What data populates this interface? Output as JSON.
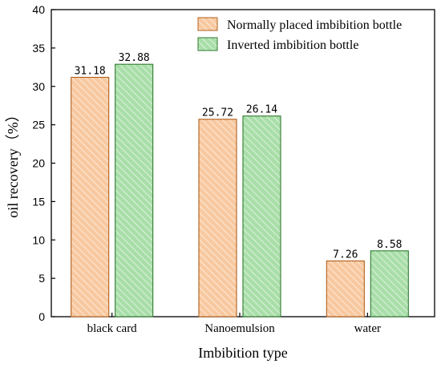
{
  "chart_data": {
    "type": "bar",
    "categories": [
      "black card",
      "Nanoemulsion",
      "water"
    ],
    "series": [
      {
        "name": "Normally placed imbibition bottle",
        "values": [
          31.18,
          25.72,
          7.26
        ],
        "color": "#f8c9a0",
        "stroke": "#b05f1c"
      },
      {
        "name": "Inverted imbibition bottle",
        "values": [
          32.88,
          26.14,
          8.58
        ],
        "color": "#a9dea9",
        "stroke": "#2f7a2f"
      }
    ],
    "data_labels": [
      [
        "31.18",
        "25.72",
        "7.26"
      ],
      [
        "32.88",
        "26.14",
        "8.58"
      ]
    ],
    "xlabel": "Imbibition type",
    "ylabel": "oil recovery（%）",
    "ylim": [
      0,
      40
    ],
    "yticks": [
      0,
      5,
      10,
      15,
      20,
      25,
      30,
      35,
      40
    ],
    "legend_position": "top-right",
    "grid": false
  }
}
